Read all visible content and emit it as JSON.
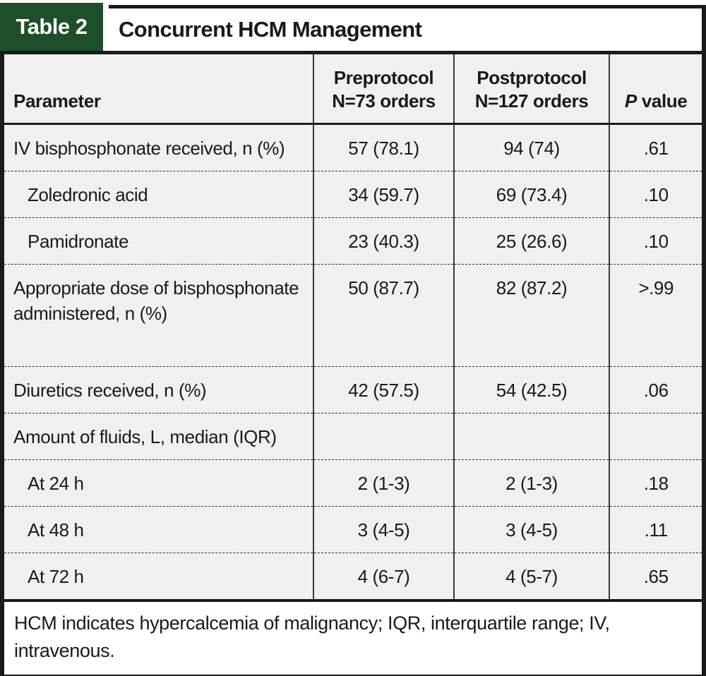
{
  "title_bar": {
    "tab_label": "Table 2",
    "title": "Concurrent HCM Management",
    "tab_color": "#1d4f2b"
  },
  "colors": {
    "table_background": "#f0f0ee",
    "border": "#1a1a1a",
    "tab_green": "#1d4f2b",
    "footnote_background": "#ffffff"
  },
  "table": {
    "header": {
      "col1": "Parameter",
      "col2_line1": "Preprotocol",
      "col2_line2": "N=73 orders",
      "col3_line1": "Postprotocol",
      "col3_line2": "N=127 orders",
      "col4_italic": "P",
      "col4_rest": " value"
    },
    "rows": [
      {
        "label": "IV bisphosphonate received, n (%)",
        "indent": false,
        "pre": "57 (78.1)",
        "post": "94 (74)",
        "p": ".61"
      },
      {
        "label": "Zoledronic acid",
        "indent": true,
        "pre": "34 (59.7)",
        "post": "69 (73.4)",
        "p": ".10"
      },
      {
        "label": "Pamidronate",
        "indent": true,
        "pre": "23 (40.3)",
        "post": "25 (26.6)",
        "p": ".10"
      },
      {
        "label": "Appropriate dose of bisphosphonate administered, n (%)",
        "indent": false,
        "pre": "50 (87.7)",
        "post": "82 (87.2)",
        "p": ">.99"
      },
      {
        "label": "Diuretics received, n (%)",
        "indent": false,
        "pre": "42 (57.5)",
        "post": "54 (42.5)",
        "p": ".06"
      },
      {
        "label": "Amount of fluids, L, median (IQR)",
        "indent": false,
        "pre": "",
        "post": "",
        "p": ""
      },
      {
        "label": "At 24 h",
        "indent": true,
        "pre": "2 (1-3)",
        "post": "2 (1-3)",
        "p": ".18"
      },
      {
        "label": "At 48 h",
        "indent": true,
        "pre": "3 (4-5)",
        "post": "3 (4-5)",
        "p": ".11"
      },
      {
        "label": "At 72 h",
        "indent": true,
        "pre": "4 (6-7)",
        "post": "4 (5-7)",
        "p": ".65"
      }
    ]
  },
  "footnote": "HCM indicates hypercalcemia of malignancy; IQR, interquartile range; IV, intravenous."
}
